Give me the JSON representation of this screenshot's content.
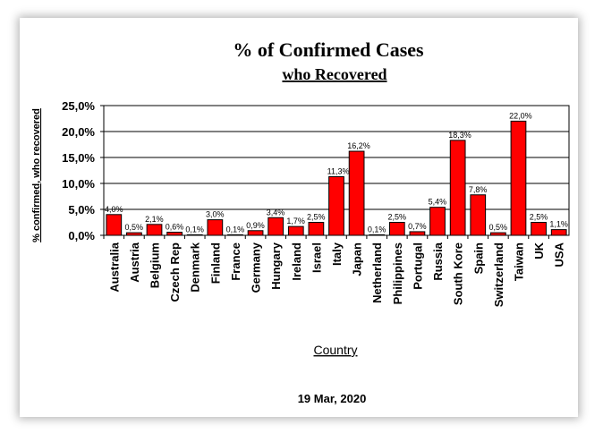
{
  "chart_data": {
    "type": "bar",
    "title": "% of Confirmed Cases",
    "subtitle": "who Recovered",
    "ylabel": "% confirmed, who recovered",
    "xlabel": "Country",
    "footer": "19 Mar, 2020",
    "ylim": [
      0,
      25
    ],
    "yticks": [
      0,
      5,
      10,
      15,
      20,
      25
    ],
    "ytick_labels": [
      "0,0%",
      "5,0%",
      "10,0%",
      "15,0%",
      "20,0%",
      "25,0%"
    ],
    "grid": true,
    "bar_color": "#ff0000",
    "categories": [
      "Australia",
      "Austria",
      "Belgium",
      "Czech Rep",
      "Denmark",
      "Finland",
      "France",
      "Germany",
      "Hungary",
      "Ireland",
      "Israel",
      "Italy",
      "Japan",
      "Netherland",
      "Philippines",
      "Portugal",
      "Russia",
      "South Kore",
      "Spain",
      "Switzerland",
      "Taiwan",
      "UK",
      "USA"
    ],
    "values": [
      4.0,
      0.5,
      2.1,
      0.6,
      0.1,
      3.0,
      0.1,
      0.9,
      3.4,
      1.7,
      2.5,
      11.3,
      16.2,
      0.1,
      2.5,
      0.7,
      5.4,
      18.3,
      7.8,
      0.5,
      22.0,
      2.5,
      1.1
    ],
    "value_labels": [
      "4,0%",
      "0,5%",
      "2,1%",
      "0,6%",
      "0,1%",
      "3,0%",
      "0,1%",
      "0,9%",
      "3,4%",
      "1,7%",
      "2,5%",
      "11,3%",
      "16,2%",
      "0,1%",
      "2,5%",
      "0,7%",
      "5,4%",
      "18,3%",
      "7,8%",
      "0,5%",
      "22,0%",
      "2,5%",
      "1,1%"
    ]
  }
}
